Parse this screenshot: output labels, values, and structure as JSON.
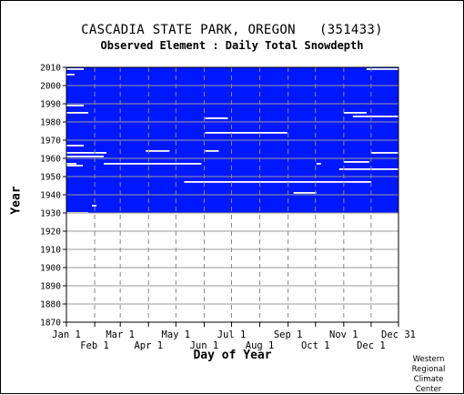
{
  "chart_data": {
    "type": "heatmap",
    "title": "CASCADIA STATE PARK, OREGON   (351433)",
    "subtitle": "Observed Element : Daily Total Snowdepth",
    "xlabel": "Day of Year",
    "ylabel": "Year",
    "credit": [
      "Western",
      "Regional",
      "Climate",
      "Center"
    ],
    "x_ticks_upper": [
      "Jan 1",
      "Mar 1",
      "May 1",
      "Jul 1",
      "Sep 1",
      "Nov 1",
      "Dec 31"
    ],
    "x_ticks_lower": [
      "Feb 1",
      "Apr 1",
      "Jun 1",
      "Aug 1",
      "Oct 1",
      "Dec 1"
    ],
    "y_ticks": [
      "2010",
      "2000",
      "1990",
      "1980",
      "1970",
      "1960",
      "1950",
      "1940",
      "1930",
      "1920",
      "1910",
      "1900",
      "1890",
      "1880",
      "1870"
    ],
    "ylim": [
      1870,
      2010
    ],
    "data_year_range": [
      1930,
      2010
    ],
    "data_color": "#0018ff",
    "gap_color": "#ffffff",
    "grid": true,
    "missing_periods": [
      {
        "year": 2009,
        "start_day": 1,
        "end_day": 20
      },
      {
        "year": 2009,
        "start_day": 330,
        "end_day": 365
      },
      {
        "year": 2006,
        "start_day": 1,
        "end_day": 10
      },
      {
        "year": 1989,
        "start_day": 1,
        "end_day": 20
      },
      {
        "year": 1985,
        "start_day": 1,
        "end_day": 25
      },
      {
        "year": 1985,
        "start_day": 305,
        "end_day": 330
      },
      {
        "year": 1983,
        "start_day": 315,
        "end_day": 365
      },
      {
        "year": 1982,
        "start_day": 153,
        "end_day": 178
      },
      {
        "year": 1974,
        "start_day": 153,
        "end_day": 243
      },
      {
        "year": 1967,
        "start_day": 1,
        "end_day": 20
      },
      {
        "year": 1964,
        "start_day": 88,
        "end_day": 114
      },
      {
        "year": 1964,
        "start_day": 153,
        "end_day": 168
      },
      {
        "year": 1963,
        "start_day": 1,
        "end_day": 45
      },
      {
        "year": 1963,
        "start_day": 335,
        "end_day": 365
      },
      {
        "year": 1961,
        "start_day": 1,
        "end_day": 42
      },
      {
        "year": 1958,
        "start_day": 305,
        "end_day": 333
      },
      {
        "year": 1957,
        "start_day": 1,
        "end_day": 12
      },
      {
        "year": 1957,
        "start_day": 42,
        "end_day": 149
      },
      {
        "year": 1957,
        "start_day": 275,
        "end_day": 280
      },
      {
        "year": 1956,
        "start_day": 1,
        "end_day": 19
      },
      {
        "year": 1954,
        "start_day": 300,
        "end_day": 365
      },
      {
        "year": 1947,
        "start_day": 130,
        "end_day": 335
      },
      {
        "year": 1941,
        "start_day": 250,
        "end_day": 275
      },
      {
        "year": 1934,
        "start_day": 29,
        "end_day": 34
      },
      {
        "year": 1930,
        "start_day": 1,
        "end_day": 25
      }
    ]
  }
}
